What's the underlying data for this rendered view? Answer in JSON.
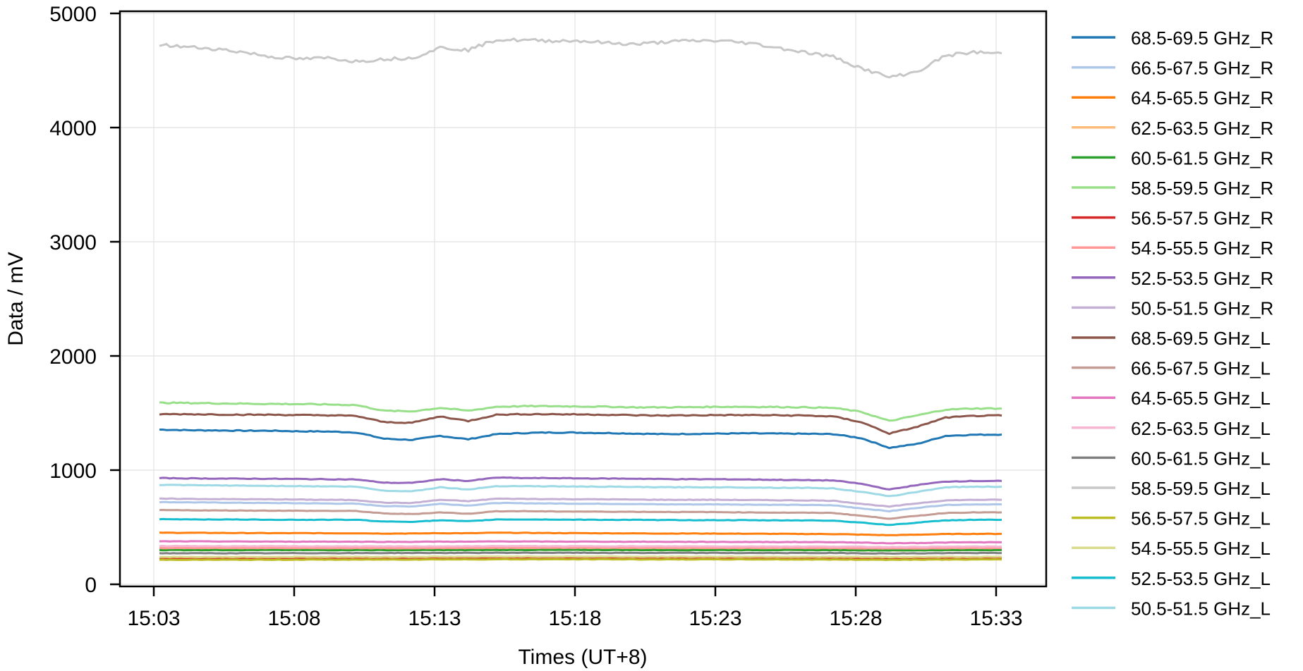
{
  "chart_data": {
    "type": "line",
    "title": "",
    "xlabel": "Times (UT+8)",
    "ylabel": "Data / mV",
    "ylim": [
      0,
      5000
    ],
    "yticks": [
      "0",
      "1000",
      "2000",
      "3000",
      "4000",
      "5000"
    ],
    "xticks": [
      "15:03",
      "15:08",
      "15:13",
      "15:18",
      "15:23",
      "15:28",
      "15:33"
    ],
    "grid": true,
    "legend_position": "outside-right",
    "x": [
      "15:03",
      "15:04",
      "15:05",
      "15:06",
      "15:07",
      "15:08",
      "15:09",
      "15:10",
      "15:11",
      "15:12",
      "15:13",
      "15:14",
      "15:15",
      "15:16",
      "15:17",
      "15:18",
      "15:19",
      "15:20",
      "15:21",
      "15:22",
      "15:23",
      "15:24",
      "15:25",
      "15:26",
      "15:27",
      "15:28",
      "15:29",
      "15:30",
      "15:31",
      "15:32",
      "15:33"
    ],
    "series": [
      {
        "name": "68.5-69.5 GHz_R",
        "color": "#1f77b4",
        "values": [
          1355,
          1350,
          1348,
          1345,
          1345,
          1340,
          1338,
          1330,
          1275,
          1265,
          1300,
          1270,
          1315,
          1325,
          1330,
          1328,
          1325,
          1320,
          1315,
          1318,
          1320,
          1322,
          1320,
          1318,
          1315,
          1280,
          1195,
          1230,
          1300,
          1310,
          1312
        ]
      },
      {
        "name": "66.5-67.5 GHz_R",
        "color": "#aec7e8",
        "values": [
          720,
          718,
          716,
          714,
          712,
          710,
          708,
          706,
          685,
          682,
          705,
          690,
          712,
          710,
          708,
          706,
          705,
          703,
          700,
          700,
          700,
          698,
          696,
          695,
          692,
          665,
          640,
          670,
          695,
          700,
          700
        ]
      },
      {
        "name": "64.5-65.5 GHz_R",
        "color": "#ff7f0e",
        "values": [
          452,
          451,
          450,
          449,
          448,
          448,
          447,
          447,
          445,
          445,
          448,
          447,
          452,
          450,
          449,
          448,
          447,
          446,
          445,
          445,
          444,
          443,
          442,
          441,
          440,
          435,
          430,
          435,
          440,
          442,
          442
        ]
      },
      {
        "name": "62.5-63.5 GHz_R",
        "color": "#ffbb78",
        "values": [
          305,
          305,
          305,
          304,
          304,
          304,
          304,
          303,
          302,
          302,
          303,
          303,
          305,
          305,
          304,
          304,
          304,
          303,
          303,
          303,
          303,
          302,
          302,
          302,
          301,
          299,
          297,
          298,
          300,
          301,
          301
        ]
      },
      {
        "name": "60.5-61.5 GHz_R",
        "color": "#2ca02c",
        "values": [
          300,
          300,
          300,
          300,
          300,
          300,
          300,
          300,
          299,
          299,
          300,
          300,
          301,
          301,
          301,
          301,
          301,
          300,
          300,
          300,
          300,
          300,
          300,
          300,
          299,
          298,
          297,
          298,
          299,
          300,
          300
        ]
      },
      {
        "name": "58.5-59.5 GHz_R",
        "color": "#98df8a",
        "values": [
          1590,
          1588,
          1585,
          1582,
          1580,
          1578,
          1575,
          1570,
          1520,
          1515,
          1545,
          1520,
          1555,
          1560,
          1560,
          1558,
          1555,
          1550,
          1550,
          1552,
          1555,
          1555,
          1553,
          1550,
          1545,
          1510,
          1430,
          1480,
          1530,
          1540,
          1540
        ]
      },
      {
        "name": "56.5-57.5 GHz_R",
        "color": "#d62728",
        "values": [
          228,
          228,
          228,
          228,
          228,
          228,
          228,
          228,
          227,
          227,
          228,
          228,
          229,
          229,
          229,
          229,
          229,
          228,
          228,
          228,
          228,
          228,
          228,
          228,
          228,
          227,
          226,
          227,
          228,
          228,
          228
        ]
      },
      {
        "name": "54.5-55.5 GHz_R",
        "color": "#ff9896",
        "values": [
          318,
          318,
          318,
          318,
          318,
          318,
          318,
          318,
          317,
          317,
          318,
          318,
          320,
          320,
          320,
          320,
          320,
          320,
          319,
          319,
          319,
          319,
          319,
          318,
          318,
          316,
          314,
          315,
          317,
          318,
          318
        ]
      },
      {
        "name": "52.5-53.5 GHz_R",
        "color": "#9467bd",
        "values": [
          930,
          928,
          926,
          925,
          924,
          922,
          920,
          918,
          890,
          888,
          920,
          905,
          935,
          930,
          930,
          928,
          926,
          925,
          922,
          920,
          920,
          918,
          915,
          912,
          910,
          880,
          830,
          870,
          900,
          905,
          905
        ]
      },
      {
        "name": "50.5-51.5 GHz_R",
        "color": "#c5b0d5",
        "values": [
          750,
          748,
          746,
          745,
          744,
          742,
          740,
          738,
          715,
          712,
          740,
          728,
          750,
          748,
          746,
          745,
          744,
          742,
          740,
          740,
          740,
          738,
          736,
          735,
          732,
          705,
          680,
          710,
          735,
          740,
          740
        ]
      },
      {
        "name": "68.5-69.5 GHz_L",
        "color": "#8c564b",
        "values": [
          1490,
          1490,
          1488,
          1485,
          1485,
          1482,
          1480,
          1475,
          1420,
          1415,
          1470,
          1430,
          1485,
          1490,
          1490,
          1488,
          1485,
          1480,
          1478,
          1480,
          1482,
          1482,
          1480,
          1478,
          1470,
          1420,
          1320,
          1380,
          1460,
          1475,
          1478
        ]
      },
      {
        "name": "66.5-67.5 GHz_L",
        "color": "#c49c94",
        "values": [
          650,
          648,
          647,
          646,
          645,
          644,
          643,
          642,
          620,
          615,
          630,
          618,
          640,
          640,
          638,
          637,
          636,
          635,
          634,
          633,
          632,
          630,
          628,
          627,
          625,
          600,
          575,
          600,
          625,
          630,
          630
        ]
      },
      {
        "name": "64.5-65.5 GHz_L",
        "color": "#e377c2",
        "values": [
          376,
          376,
          375,
          375,
          374,
          374,
          374,
          373,
          372,
          372,
          374,
          373,
          376,
          375,
          374,
          374,
          373,
          373,
          372,
          372,
          371,
          371,
          370,
          370,
          369,
          365,
          360,
          362,
          366,
          368,
          368
        ]
      },
      {
        "name": "62.5-63.5 GHz_L",
        "color": "#f7b6d2",
        "values": [
          335,
          335,
          334,
          334,
          334,
          333,
          333,
          333,
          332,
          332,
          333,
          333,
          335,
          335,
          334,
          334,
          334,
          333,
          333,
          333,
          332,
          332,
          332,
          331,
          331,
          329,
          327,
          328,
          330,
          331,
          331
        ]
      },
      {
        "name": "60.5-61.5 GHz_L",
        "color": "#7f7f7f",
        "values": [
          272,
          272,
          272,
          272,
          272,
          273,
          273,
          273,
          274,
          274,
          275,
          275,
          276,
          276,
          276,
          276,
          275,
          275,
          275,
          275,
          275,
          274,
          274,
          274,
          274,
          272,
          270,
          271,
          273,
          274,
          274
        ]
      },
      {
        "name": "58.5-59.5 GHz_L",
        "color": "#c7c7c7",
        "values": [
          4725,
          4705,
          4690,
          4660,
          4620,
          4600,
          4610,
          4580,
          4600,
          4610,
          4700,
          4680,
          4770,
          4765,
          4760,
          4760,
          4740,
          4730,
          4750,
          4760,
          4760,
          4740,
          4700,
          4660,
          4620,
          4520,
          4440,
          4490,
          4630,
          4660,
          4650
        ]
      },
      {
        "name": "56.5-57.5 GHz_L",
        "color": "#bcbd22",
        "values": [
          215,
          215,
          215,
          215,
          215,
          216,
          216,
          216,
          217,
          217,
          218,
          218,
          219,
          219,
          219,
          219,
          219,
          218,
          218,
          218,
          218,
          218,
          218,
          217,
          217,
          216,
          215,
          216,
          217,
          217,
          217
        ]
      },
      {
        "name": "54.5-55.5 GHz_L",
        "color": "#dbdb8d",
        "values": [
          240,
          240,
          240,
          240,
          240,
          241,
          241,
          241,
          241,
          241,
          242,
          242,
          243,
          243,
          243,
          243,
          243,
          242,
          242,
          242,
          242,
          242,
          242,
          241,
          241,
          240,
          239,
          240,
          241,
          241,
          241
        ]
      },
      {
        "name": "52.5-53.5 GHz_L",
        "color": "#17becf",
        "values": [
          570,
          569,
          568,
          567,
          566,
          565,
          565,
          565,
          550,
          548,
          560,
          552,
          568,
          568,
          567,
          566,
          565,
          564,
          563,
          562,
          562,
          561,
          560,
          560,
          558,
          540,
          520,
          540,
          560,
          565,
          565
        ]
      },
      {
        "name": "50.5-51.5 GHz_L",
        "color": "#9edae5",
        "values": [
          870,
          868,
          866,
          864,
          862,
          860,
          858,
          855,
          820,
          815,
          850,
          830,
          860,
          860,
          858,
          856,
          855,
          852,
          850,
          850,
          850,
          848,
          846,
          845,
          840,
          810,
          770,
          810,
          850,
          855,
          855
        ]
      }
    ]
  }
}
